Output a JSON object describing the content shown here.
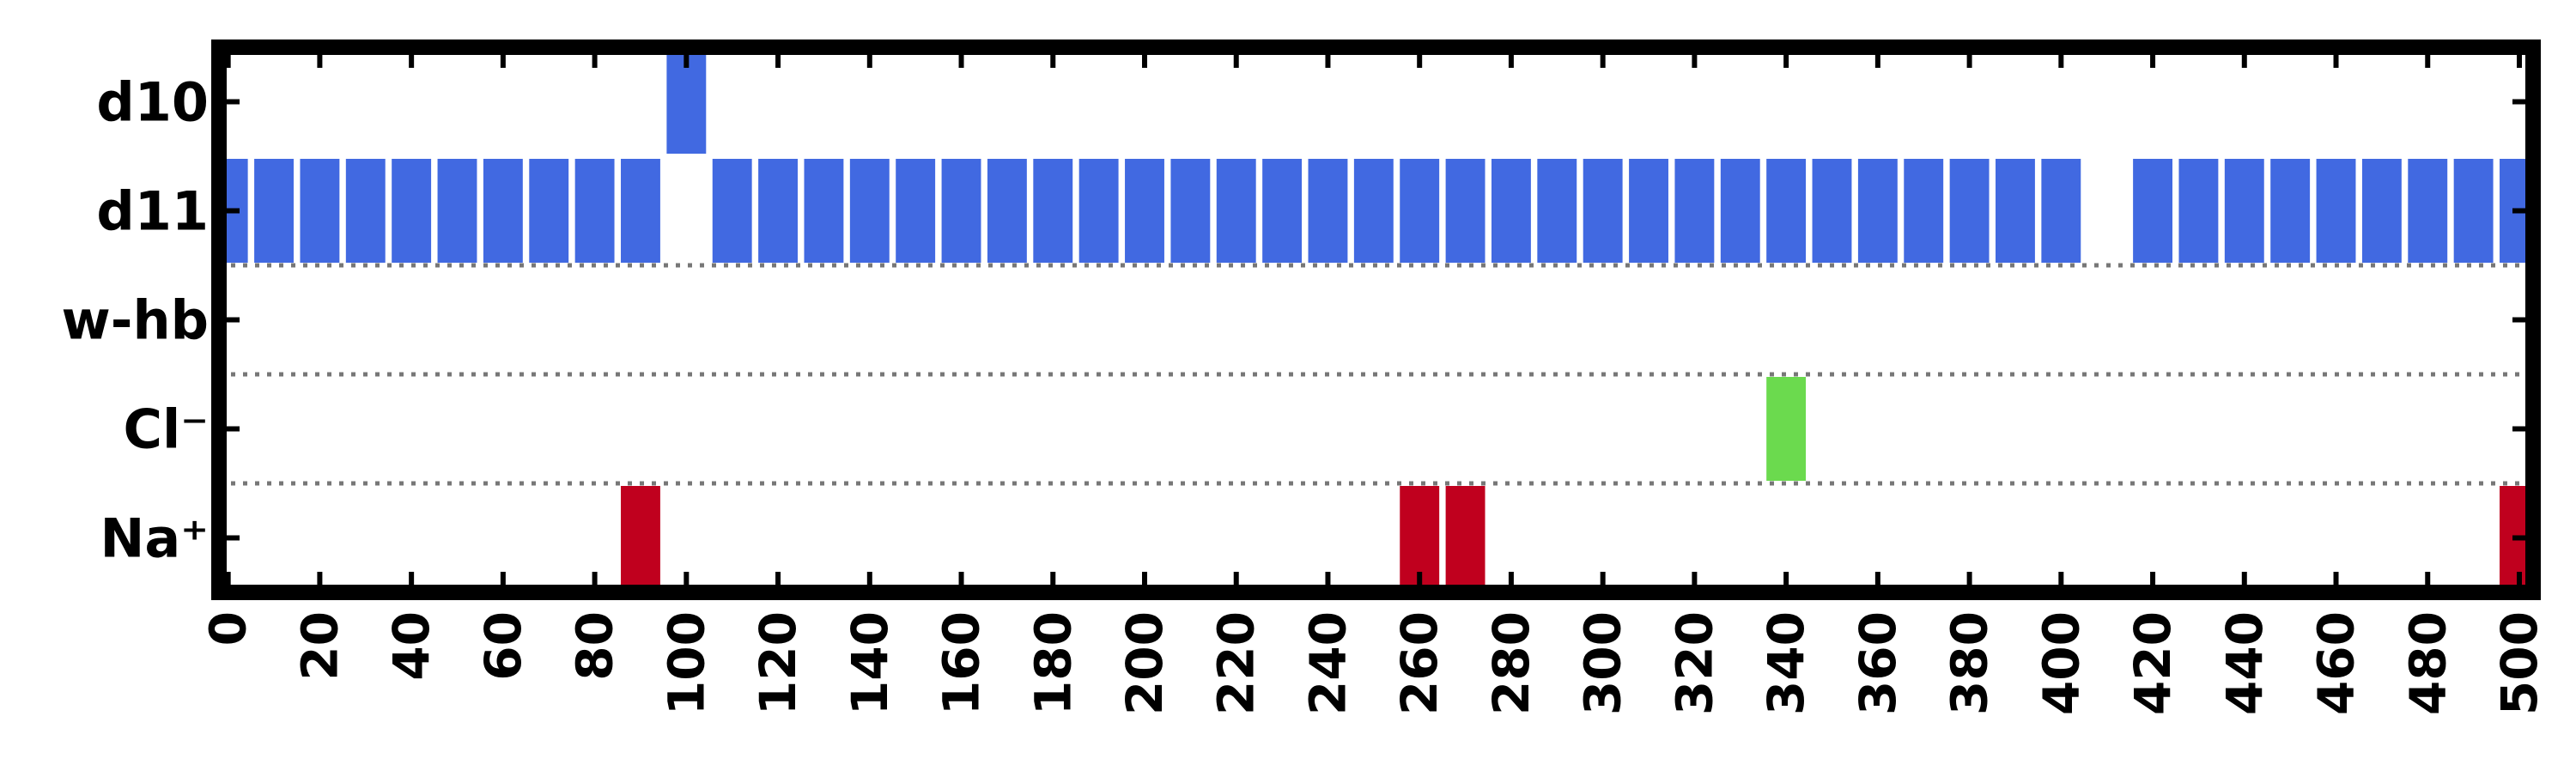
{
  "chart_data": {
    "type": "heatmap",
    "title": "",
    "xlabel": "",
    "ylabel": "",
    "xlim": [
      -2,
      503
    ],
    "x_ticks": [
      0,
      20,
      40,
      60,
      80,
      100,
      120,
      140,
      160,
      180,
      200,
      220,
      240,
      260,
      280,
      300,
      320,
      340,
      360,
      380,
      400,
      420,
      440,
      460,
      480,
      500
    ],
    "x_tick_labels": [
      "0",
      "20",
      "40",
      "60",
      "80",
      "100",
      "120",
      "140",
      "160",
      "180",
      "200",
      "220",
      "240",
      "260",
      "280",
      "300",
      "320",
      "340",
      "360",
      "380",
      "400",
      "420",
      "440",
      "460",
      "480",
      "500"
    ],
    "bin_width": 10,
    "rows_top_to_bottom": [
      "d10",
      "d11",
      "w-hb",
      "Cl⁻",
      "Na⁺"
    ],
    "series": [
      {
        "row": "d10",
        "color": "#4169E1",
        "x": [
          100
        ]
      },
      {
        "row": "d11",
        "color": "#4169E1",
        "x": [
          0,
          10,
          20,
          30,
          40,
          50,
          60,
          70,
          80,
          90,
          110,
          120,
          130,
          140,
          150,
          160,
          170,
          180,
          190,
          200,
          210,
          220,
          230,
          240,
          250,
          260,
          270,
          280,
          290,
          300,
          310,
          320,
          330,
          340,
          350,
          360,
          370,
          380,
          390,
          400,
          420,
          430,
          440,
          450,
          460,
          470,
          480,
          490,
          500
        ]
      },
      {
        "row": "w-hb",
        "color": "#32CD32",
        "x": []
      },
      {
        "row": "Cl⁻",
        "color": "#6BDA4E",
        "x": [
          340
        ]
      },
      {
        "row": "Na⁺",
        "color": "#C0001E",
        "x": [
          90,
          260,
          270,
          500
        ]
      }
    ],
    "separators": "dotted lines between d11/w-hb, w-hb/Cl⁻, Cl⁻/Na⁺",
    "grid": false,
    "legend": "none"
  }
}
